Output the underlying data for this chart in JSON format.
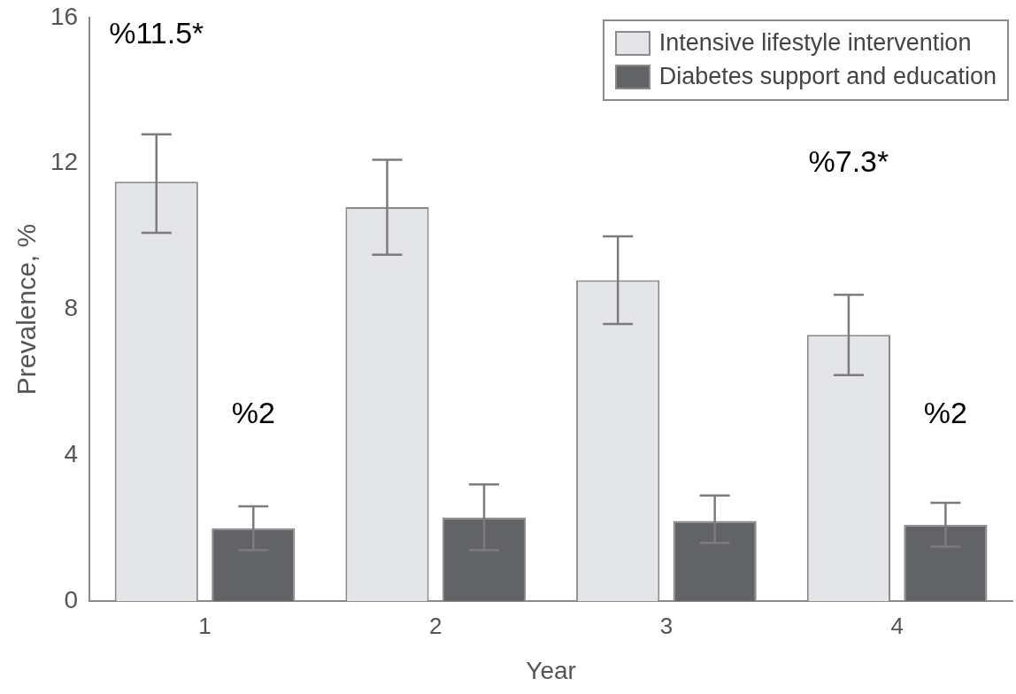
{
  "chart_data": {
    "type": "bar",
    "xlabel": "Year",
    "ylabel": "Prevalence, %",
    "categories": [
      "1",
      "2",
      "3",
      "4"
    ],
    "series": [
      {
        "name": "Intensive lifestyle intervention",
        "color": "#e4e5e8",
        "values": [
          11.5,
          10.8,
          8.8,
          7.3
        ],
        "errors": [
          [
            10.1,
            12.8
          ],
          [
            9.5,
            12.1
          ],
          [
            7.6,
            10.0
          ],
          [
            6.2,
            8.4
          ]
        ]
      },
      {
        "name": "Diabetes support and education",
        "color": "#626366",
        "values": [
          2.0,
          2.3,
          2.2,
          2.1
        ],
        "errors": [
          [
            1.4,
            2.6
          ],
          [
            1.4,
            3.2
          ],
          [
            1.6,
            2.9
          ],
          [
            1.5,
            2.7
          ]
        ]
      }
    ],
    "ylim": [
      0,
      16
    ],
    "yticks": [
      0,
      4,
      8,
      12,
      16
    ],
    "grid": false,
    "legend": "top right",
    "annotations": [
      "%11.5*",
      "%2",
      "%7.3*",
      "%2"
    ]
  }
}
